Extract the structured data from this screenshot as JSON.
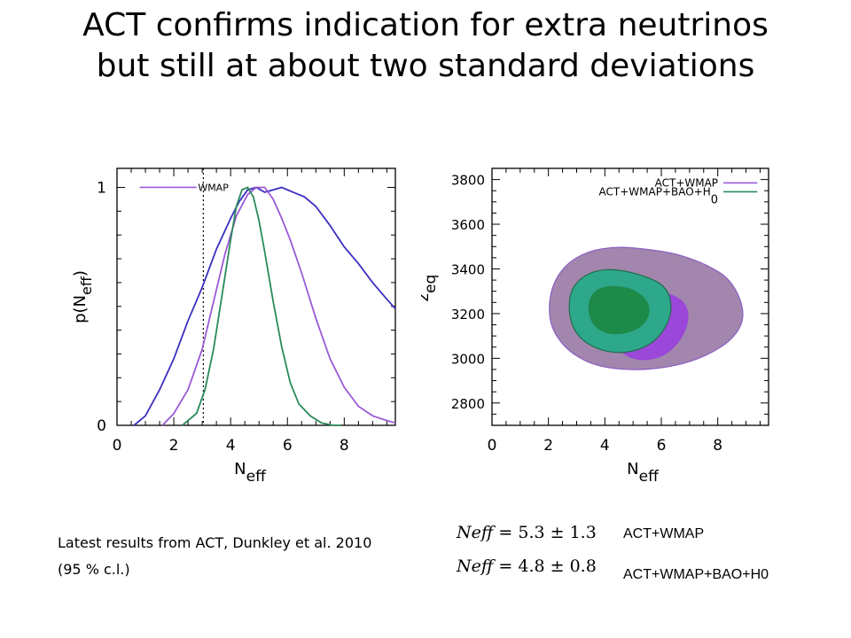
{
  "slide": {
    "title_line1": "ACT confirms indication for extra neutrinos",
    "title_line2": "but still at about two standard deviations",
    "caption_line1": "Latest results from ACT, Dunkley et al. 2010",
    "caption_line2": "(95 % c.l.)"
  },
  "results": [
    {
      "lhs": "Neff",
      "eq": "= ",
      "value": "5.3",
      "pm": " ± ",
      "err": "1.3",
      "label": "ACT+WMAP"
    },
    {
      "lhs": "Neff",
      "eq": "= ",
      "value": "4.8",
      "pm": " ± ",
      "err": "0.8",
      "label": "ACT+WMAP+BAO+H0"
    }
  ],
  "colors": {
    "blue": "#3b2fc0",
    "purple": "#9a5ad6",
    "green": "#2a8a5a",
    "outer_fill": "#a386ad",
    "outer_stroke": "#8a5fc4",
    "mid_purple": "#9b47d9",
    "mid_green": "#2ea88a",
    "inner_green": "#1e8a4a"
  },
  "chart_data": [
    {
      "type": "line",
      "xlabel_main": "N",
      "xlabel_sub": "eff",
      "ylabel_main": "p(N",
      "ylabel_sub": "eff",
      "ylabel_close": ")",
      "xlim": [
        0,
        9.8
      ],
      "ylim": [
        0,
        1.08
      ],
      "xticks": [
        "0",
        "2",
        "4",
        "6",
        "8"
      ],
      "yticks": [
        "0",
        "1"
      ],
      "vline": 3.04,
      "legend": {
        "label": "WMAP",
        "position": "top-left"
      },
      "series": [
        {
          "name": "WMAP",
          "color": "blue",
          "x": [
            0.6,
            1.0,
            1.5,
            2.0,
            2.5,
            3.0,
            3.5,
            4.0,
            4.3,
            4.6,
            4.9,
            5.2,
            5.5,
            5.8,
            6.2,
            6.6,
            7.0,
            7.5,
            8.0,
            8.5,
            9.0,
            9.5,
            9.8
          ],
          "y": [
            0.0,
            0.04,
            0.15,
            0.28,
            0.44,
            0.58,
            0.74,
            0.87,
            0.94,
            0.99,
            1.0,
            0.98,
            0.99,
            1.0,
            0.98,
            0.96,
            0.92,
            0.84,
            0.75,
            0.68,
            0.6,
            0.53,
            0.49
          ]
        },
        {
          "name": "",
          "color": "purple",
          "x": [
            1.6,
            2.0,
            2.5,
            3.0,
            3.4,
            3.8,
            4.2,
            4.6,
            4.9,
            5.2,
            5.5,
            5.8,
            6.1,
            6.5,
            7.0,
            7.5,
            8.0,
            8.5,
            9.0,
            9.5,
            9.8
          ],
          "y": [
            0.0,
            0.05,
            0.15,
            0.32,
            0.52,
            0.72,
            0.88,
            0.97,
            1.0,
            1.0,
            0.95,
            0.87,
            0.78,
            0.64,
            0.45,
            0.28,
            0.16,
            0.08,
            0.04,
            0.02,
            0.01
          ],
          "notes_sub": ""
        },
        {
          "name": "",
          "color": "green",
          "x": [
            2.3,
            2.8,
            3.1,
            3.4,
            3.7,
            4.0,
            4.2,
            4.4,
            4.6,
            4.8,
            5.0,
            5.2,
            5.5,
            5.8,
            6.1,
            6.4,
            6.8,
            7.2,
            7.6,
            7.9
          ],
          "y": [
            0.0,
            0.05,
            0.15,
            0.32,
            0.55,
            0.78,
            0.92,
            0.99,
            1.0,
            0.96,
            0.86,
            0.73,
            0.52,
            0.33,
            0.18,
            0.09,
            0.04,
            0.01,
            0.0,
            0.0
          ]
        }
      ]
    },
    {
      "type": "contour",
      "xlabel_main": "N",
      "xlabel_sub": "eff",
      "ylabel_main": "z",
      "ylabel_sub": "eq",
      "xlim": [
        0,
        9.8
      ],
      "ylim": [
        2700,
        3850
      ],
      "xticks": [
        "0",
        "2",
        "4",
        "6",
        "8"
      ],
      "yticks": [
        "2800",
        "3000",
        "3200",
        "3400",
        "3600",
        "3800"
      ],
      "legend": {
        "position": "top-right",
        "entries": [
          {
            "label": "ACT+WMAP",
            "color": "purple"
          },
          {
            "label": "ACT+WMAP+BAO+H",
            "sub": "0",
            "color": "green"
          }
        ]
      },
      "regions": [
        {
          "series": "ACT+WMAP",
          "level": "95%",
          "fill": "outer_fill",
          "stroke": "outer_stroke",
          "points": [
            [
              2.0,
              3200
            ],
            [
              2.1,
              3320
            ],
            [
              2.6,
              3420
            ],
            [
              3.4,
              3480
            ],
            [
              4.4,
              3500
            ],
            [
              5.4,
              3490
            ],
            [
              6.5,
              3470
            ],
            [
              7.6,
              3420
            ],
            [
              8.5,
              3350
            ],
            [
              9.0,
              3200
            ],
            [
              8.6,
              3090
            ],
            [
              7.6,
              3010
            ],
            [
              6.5,
              2965
            ],
            [
              5.2,
              2945
            ],
            [
              3.8,
              2960
            ],
            [
              2.8,
              3020
            ],
            [
              2.2,
              3110
            ]
          ]
        },
        {
          "series": "ACT+WMAP",
          "level": "68%",
          "fill": "mid_purple",
          "stroke": "mid_purple",
          "points": [
            [
              4.0,
              3330
            ],
            [
              5.0,
              3330
            ],
            [
              6.0,
              3300
            ],
            [
              6.8,
              3260
            ],
            [
              7.0,
              3180
            ],
            [
              6.7,
              3080
            ],
            [
              6.0,
              3000
            ],
            [
              5.0,
              2990
            ],
            [
              4.3,
              3060
            ]
          ]
        },
        {
          "series": "ACT+WMAP+BAO+H0",
          "level": "95%",
          "fill": "mid_green",
          "stroke": "#1e6e4a",
          "points": [
            [
              2.7,
              3200
            ],
            [
              2.8,
              3320
            ],
            [
              3.5,
              3390
            ],
            [
              4.4,
              3400
            ],
            [
              5.4,
              3370
            ],
            [
              6.2,
              3320
            ],
            [
              6.4,
              3220
            ],
            [
              6.1,
              3120
            ],
            [
              5.5,
              3050
            ],
            [
              4.6,
              3020
            ],
            [
              3.7,
              3040
            ],
            [
              3.0,
              3100
            ]
          ]
        },
        {
          "series": "ACT+WMAP+BAO+H0",
          "level": "68%",
          "fill": "inner_green",
          "stroke": "inner_green",
          "points": [
            [
              3.4,
              3250
            ],
            [
              3.7,
              3310
            ],
            [
              4.3,
              3325
            ],
            [
              5.0,
              3310
            ],
            [
              5.5,
              3260
            ],
            [
              5.6,
              3200
            ],
            [
              5.3,
              3140
            ],
            [
              4.7,
              3110
            ],
            [
              4.0,
              3110
            ],
            [
              3.5,
              3160
            ]
          ]
        }
      ]
    }
  ]
}
